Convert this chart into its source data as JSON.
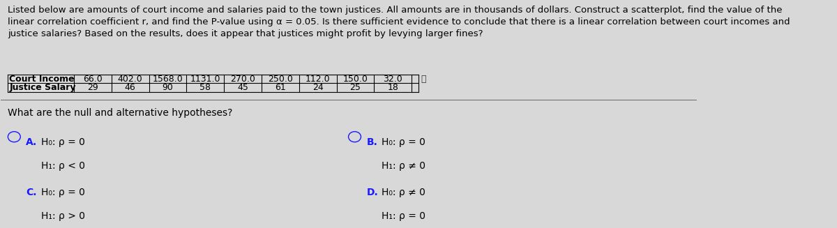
{
  "paragraph": "Listed below are amounts of court income and salaries paid to the town justices. All amounts are in thousands of dollars. Construct a scatterplot, find the value of the\nlinear correlation coefficient r, and find the P-value using α = 0.05. Is there sufficient evidence to conclude that there is a linear correlation between court incomes and\njustice salaries? Based on the results, does it appear that justices might profit by levying larger fines?",
  "table_headers": [
    "Court Income",
    "Justice Salary"
  ],
  "court_income": [
    "66.0",
    "402.0",
    "1568.0",
    "1131.0",
    "270.0",
    "250.0",
    "112.0",
    "150.0",
    "32.0"
  ],
  "justice_salary": [
    "29",
    "46",
    "90",
    "58",
    "45",
    "61",
    "24",
    "25",
    "18"
  ],
  "question": "What are the null and alternative hypotheses?",
  "options": [
    {
      "label": "A.",
      "h0": "H₀: ρ = 0",
      "h1": "H₁: ρ < 0"
    },
    {
      "label": "B.",
      "h0": "H₀: ρ = 0",
      "h1": "H₁: ρ ≠ 0"
    },
    {
      "label": "C.",
      "h0": "H₀: ρ = 0",
      "h1": "H₁: ρ > 0"
    },
    {
      "label": "D.",
      "h0": "H₀: ρ ≠ 0",
      "h1": "H₁: ρ = 0"
    }
  ],
  "bg_color": "#d8d8d8",
  "text_color": "#000000",
  "option_color": "#1a1aff",
  "table_border_color": "#000000",
  "font_size_para": 9.5,
  "font_size_table": 9.0,
  "font_size_question": 10,
  "font_size_options": 10
}
